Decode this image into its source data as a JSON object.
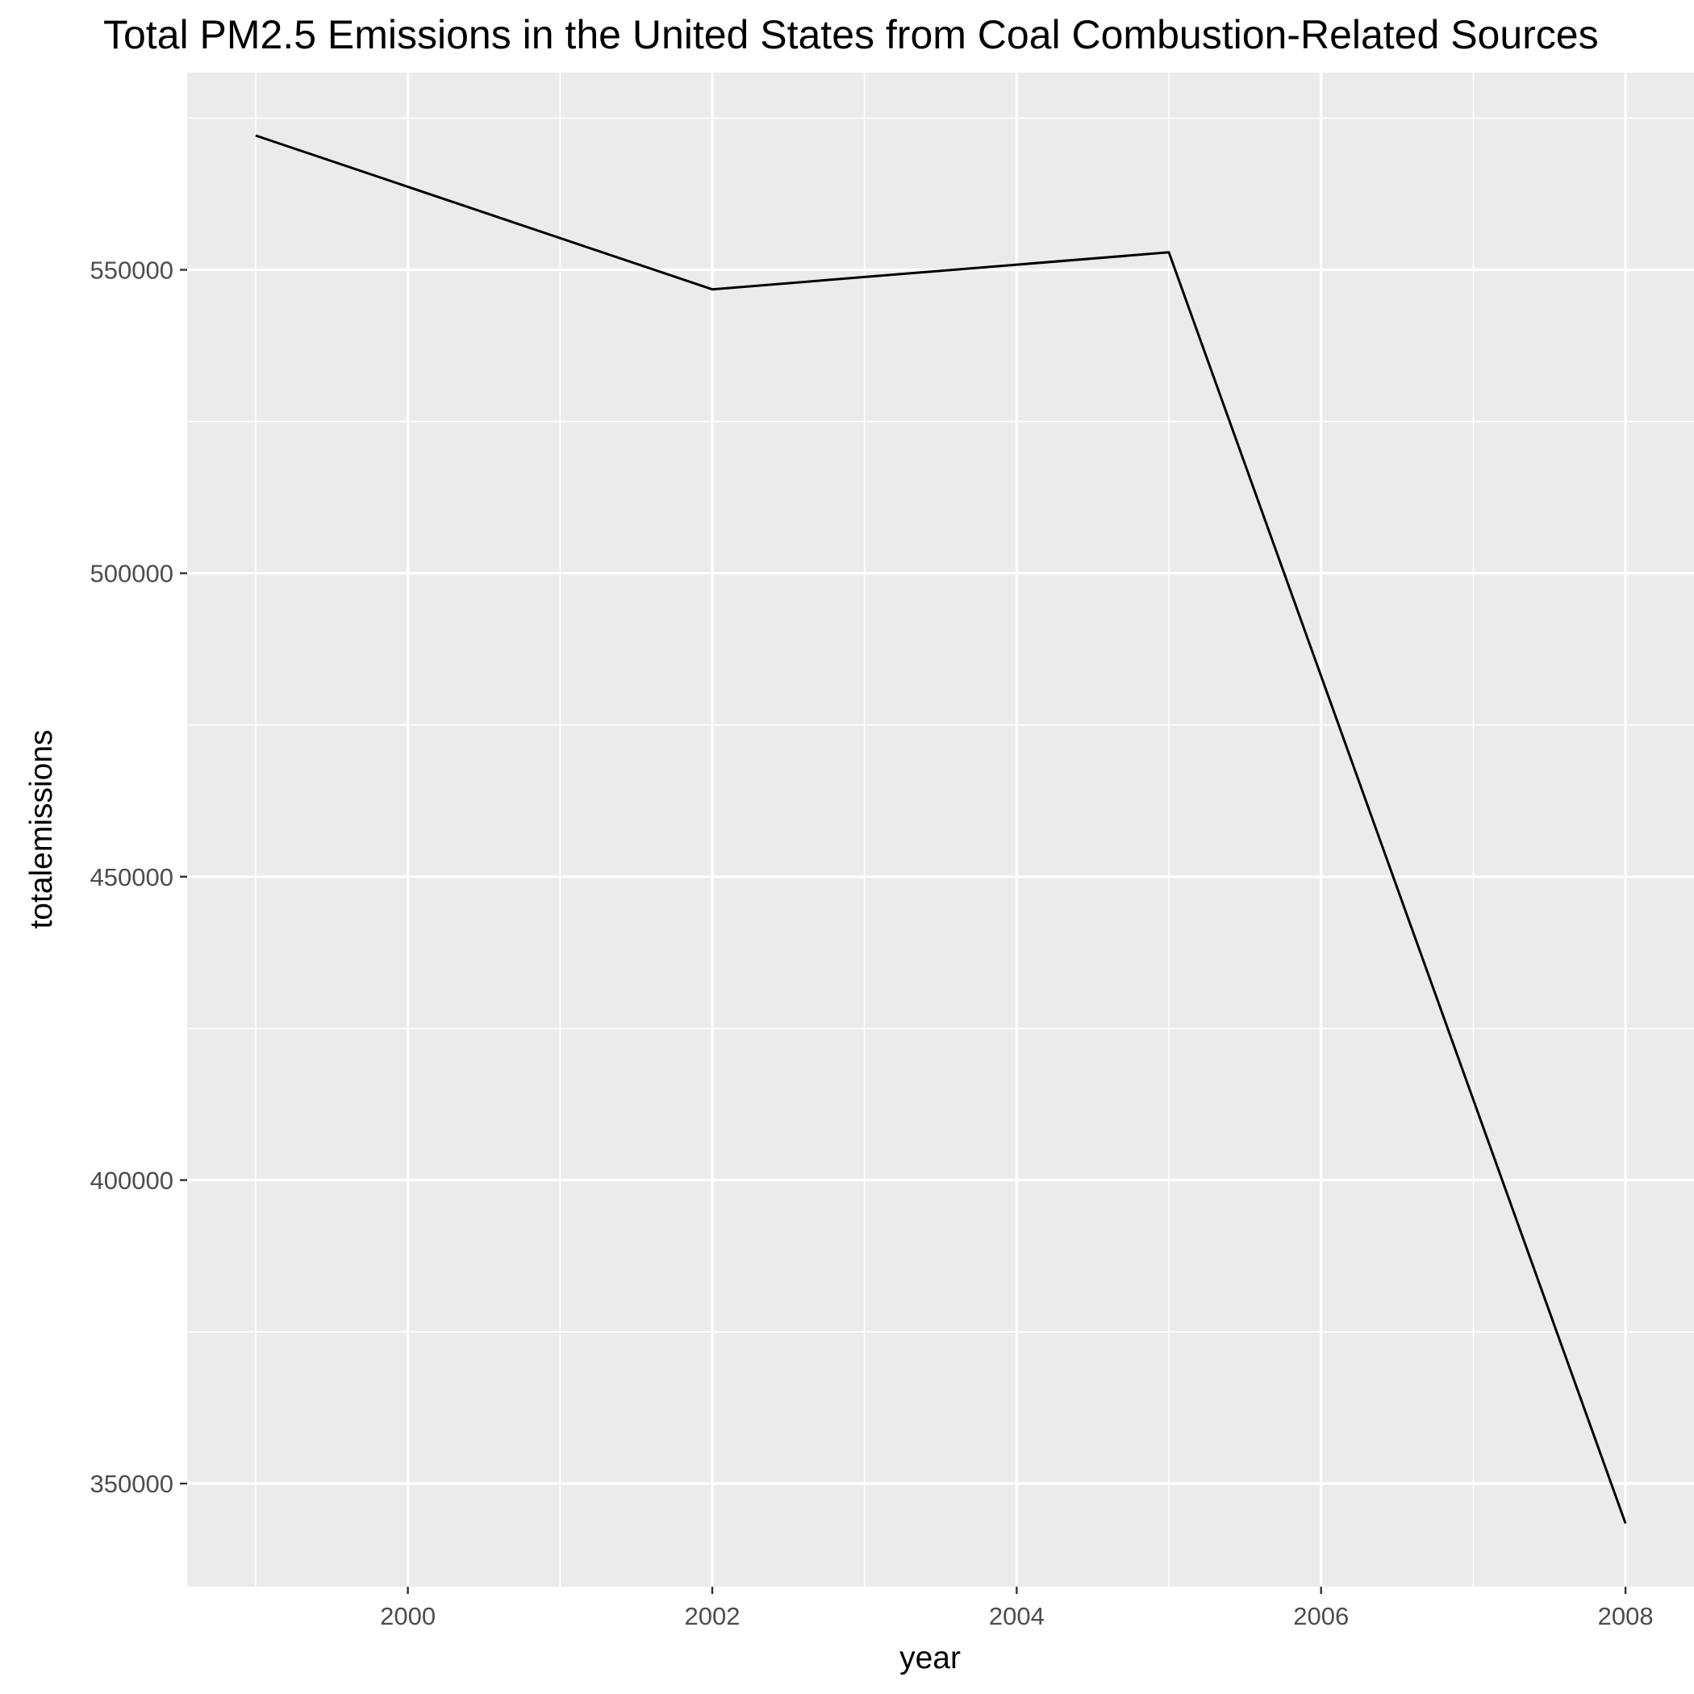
{
  "chart_data": {
    "type": "line",
    "title": "Total PM2.5 Emissions in the United States from Coal Combustion-Related Sources",
    "xlabel": "year",
    "ylabel": "totalemissions",
    "x": [
      1999,
      2002,
      2005,
      2008
    ],
    "series": [
      {
        "values": [
          572126.5,
          546789.2,
          552881.5,
          343432.2
        ]
      }
    ],
    "xlim": [
      1998.55,
      2008.45
    ],
    "ylim": [
      333000,
      582500
    ],
    "x_ticks": [
      2000,
      2002,
      2004,
      2006,
      2008
    ],
    "x_tick_labels": [
      "2000",
      "2002",
      "2004",
      "2006",
      "2008"
    ],
    "y_ticks": [
      350000,
      400000,
      450000,
      500000,
      550000
    ],
    "y_tick_labels": [
      "350000",
      "400000",
      "450000",
      "500000",
      "550000"
    ],
    "grid": true,
    "legend": "none",
    "colors": {
      "panel_background": "#ebebeb",
      "grid": "#ffffff",
      "line": "#000000",
      "tick_text": "#4d4d4d"
    }
  }
}
